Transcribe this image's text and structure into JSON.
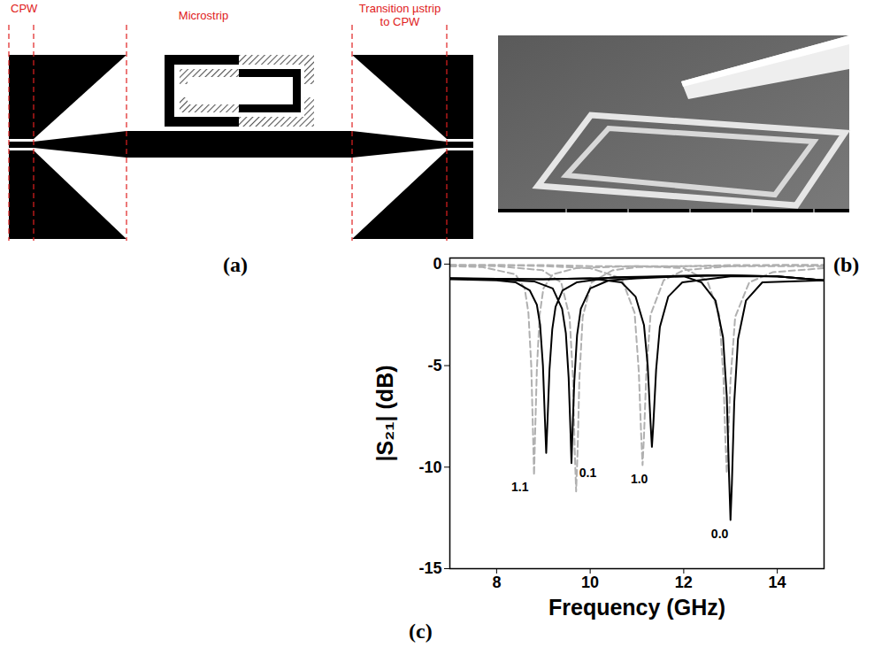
{
  "panels": [
    {
      "letter": "(a)",
      "labels": [
        "CPW",
        "Microstrip",
        "Transition µstrip to CPW"
      ]
    },
    {
      "letter": "(b)"
    },
    {
      "letter": "(c)"
    }
  ],
  "chart_data": {
    "type": "line",
    "x_label": "Frequency (GHz)",
    "y_label": "|S₂₁| (dB)",
    "xlim": [
      7,
      15
    ],
    "xticks": [
      8,
      10,
      12,
      14
    ],
    "ylim": [
      -15,
      0.3
    ],
    "yticks": [
      -15,
      -10,
      -5,
      0
    ],
    "series": [
      {
        "color": "#b0b0b0",
        "line_style": "dashed",
        "x": [
          7,
          7.7,
          8.4,
          8.6,
          8.68,
          8.74,
          8.78,
          8.8,
          8.82,
          8.86,
          8.92,
          9.0,
          9.2,
          9.7,
          11,
          12,
          13,
          14,
          15
        ],
        "values": [
          -0.1,
          -0.15,
          -0.5,
          -1.2,
          -2.4,
          -5.0,
          -8.5,
          -10.4,
          -8.6,
          -5.2,
          -2.5,
          -1.2,
          -0.5,
          -0.2,
          -0.1,
          -0.1,
          -0.1,
          -0.1,
          -0.1
        ]
      },
      {
        "color": "#b0b0b0",
        "line_style": "dashed",
        "x": [
          7,
          8,
          8.98,
          9.38,
          9.56,
          9.63,
          9.67,
          9.7,
          9.73,
          9.77,
          9.84,
          10.03,
          10.48,
          11,
          12,
          13,
          14,
          15
        ],
        "values": [
          -0.05,
          -0.1,
          -0.3,
          -0.9,
          -2.6,
          -5.5,
          -9.2,
          -11.2,
          -9.3,
          -5.6,
          -2.6,
          -0.9,
          -0.3,
          -0.15,
          -0.1,
          -0.05,
          -0.05,
          -0.05
        ]
      },
      {
        "color": "#b0b0b0",
        "line_style": "dashed",
        "x": [
          7,
          8,
          9,
          10,
          10.67,
          10.95,
          11.04,
          11.09,
          11.12,
          11.15,
          11.2,
          11.29,
          11.57,
          12,
          13,
          14,
          15
        ],
        "values": [
          -0.05,
          -0.05,
          -0.1,
          -0.2,
          -0.7,
          -2.4,
          -5.3,
          -8.4,
          -9.9,
          -8.5,
          -5.4,
          -2.5,
          -0.8,
          -0.3,
          -0.1,
          -0.05,
          -0.05
        ]
      },
      {
        "color": "#b0b0b0",
        "line_style": "dashed",
        "x": [
          7,
          8,
          9,
          10,
          11,
          12,
          12.5,
          12.76,
          12.85,
          12.89,
          12.92,
          12.95,
          13.0,
          13.1,
          13.4,
          13.9,
          15
        ],
        "values": [
          -0.05,
          -0.05,
          -0.05,
          -0.1,
          -0.1,
          -0.2,
          -0.8,
          -2.5,
          -5.6,
          -8.6,
          -10.3,
          -8.7,
          -5.7,
          -2.6,
          -0.9,
          -0.4,
          -0.2
        ]
      },
      {
        "color": "#000000",
        "line_style": "solid",
        "x": [
          7,
          8,
          8.41,
          8.71,
          8.86,
          8.93,
          8.99,
          9.03,
          9.06,
          9.09,
          9.13,
          9.19,
          9.26,
          9.41,
          9.71,
          10.5,
          11.5,
          12.5,
          14,
          15
        ],
        "values": [
          -0.75,
          -0.8,
          -0.9,
          -1.3,
          -2.0,
          -3.0,
          -5.0,
          -7.5,
          -9.3,
          -7.6,
          -5.2,
          -3.2,
          -2.1,
          -1.3,
          -0.9,
          -0.65,
          -0.6,
          -0.55,
          -0.6,
          -0.8
        ]
      },
      {
        "color": "#000000",
        "line_style": "solid",
        "x": [
          7,
          8,
          8.8,
          9.2,
          9.4,
          9.48,
          9.54,
          9.58,
          9.6,
          9.62,
          9.66,
          9.72,
          9.8,
          10.0,
          10.4,
          11,
          12,
          13,
          14,
          15
        ],
        "values": [
          -0.7,
          -0.75,
          -0.85,
          -1.2,
          -2.2,
          -3.4,
          -5.6,
          -8.3,
          -9.8,
          -8.4,
          -5.8,
          -3.5,
          -2.2,
          -1.2,
          -0.8,
          -0.7,
          -0.6,
          -0.55,
          -0.6,
          -0.8
        ]
      },
      {
        "color": "#000000",
        "line_style": "solid",
        "x": [
          7,
          8,
          9,
          10,
          10.67,
          10.97,
          11.15,
          11.23,
          11.29,
          11.32,
          11.35,
          11.41,
          11.49,
          11.67,
          11.97,
          13,
          14,
          15
        ],
        "values": [
          -0.7,
          -0.72,
          -0.75,
          -0.7,
          -0.9,
          -1.6,
          -3.0,
          -5.0,
          -7.8,
          -9.0,
          -7.9,
          -5.2,
          -3.1,
          -1.6,
          -0.9,
          -0.6,
          -0.6,
          -0.8
        ]
      },
      {
        "color": "#000000",
        "line_style": "solid",
        "x": [
          7,
          8,
          9,
          10,
          11,
          12,
          12.38,
          12.68,
          12.84,
          12.92,
          12.97,
          13.0,
          13.03,
          13.08,
          13.16,
          13.33,
          13.68,
          15
        ],
        "values": [
          -0.7,
          -0.72,
          -0.75,
          -0.7,
          -0.65,
          -0.6,
          -0.9,
          -1.8,
          -3.6,
          -6.5,
          -10.5,
          -12.6,
          -10.8,
          -6.8,
          -3.7,
          -1.8,
          -0.9,
          -0.8
        ]
      }
    ],
    "annotations": [
      {
        "text": "1.1",
        "x": 8.5,
        "y": -11.0
      },
      {
        "text": "0.1",
        "x": 9.95,
        "y": -10.3
      },
      {
        "text": "1.0",
        "x": 11.05,
        "y": -10.6
      },
      {
        "text": "0.0",
        "x": 12.77,
        "y": -13.3
      }
    ]
  }
}
